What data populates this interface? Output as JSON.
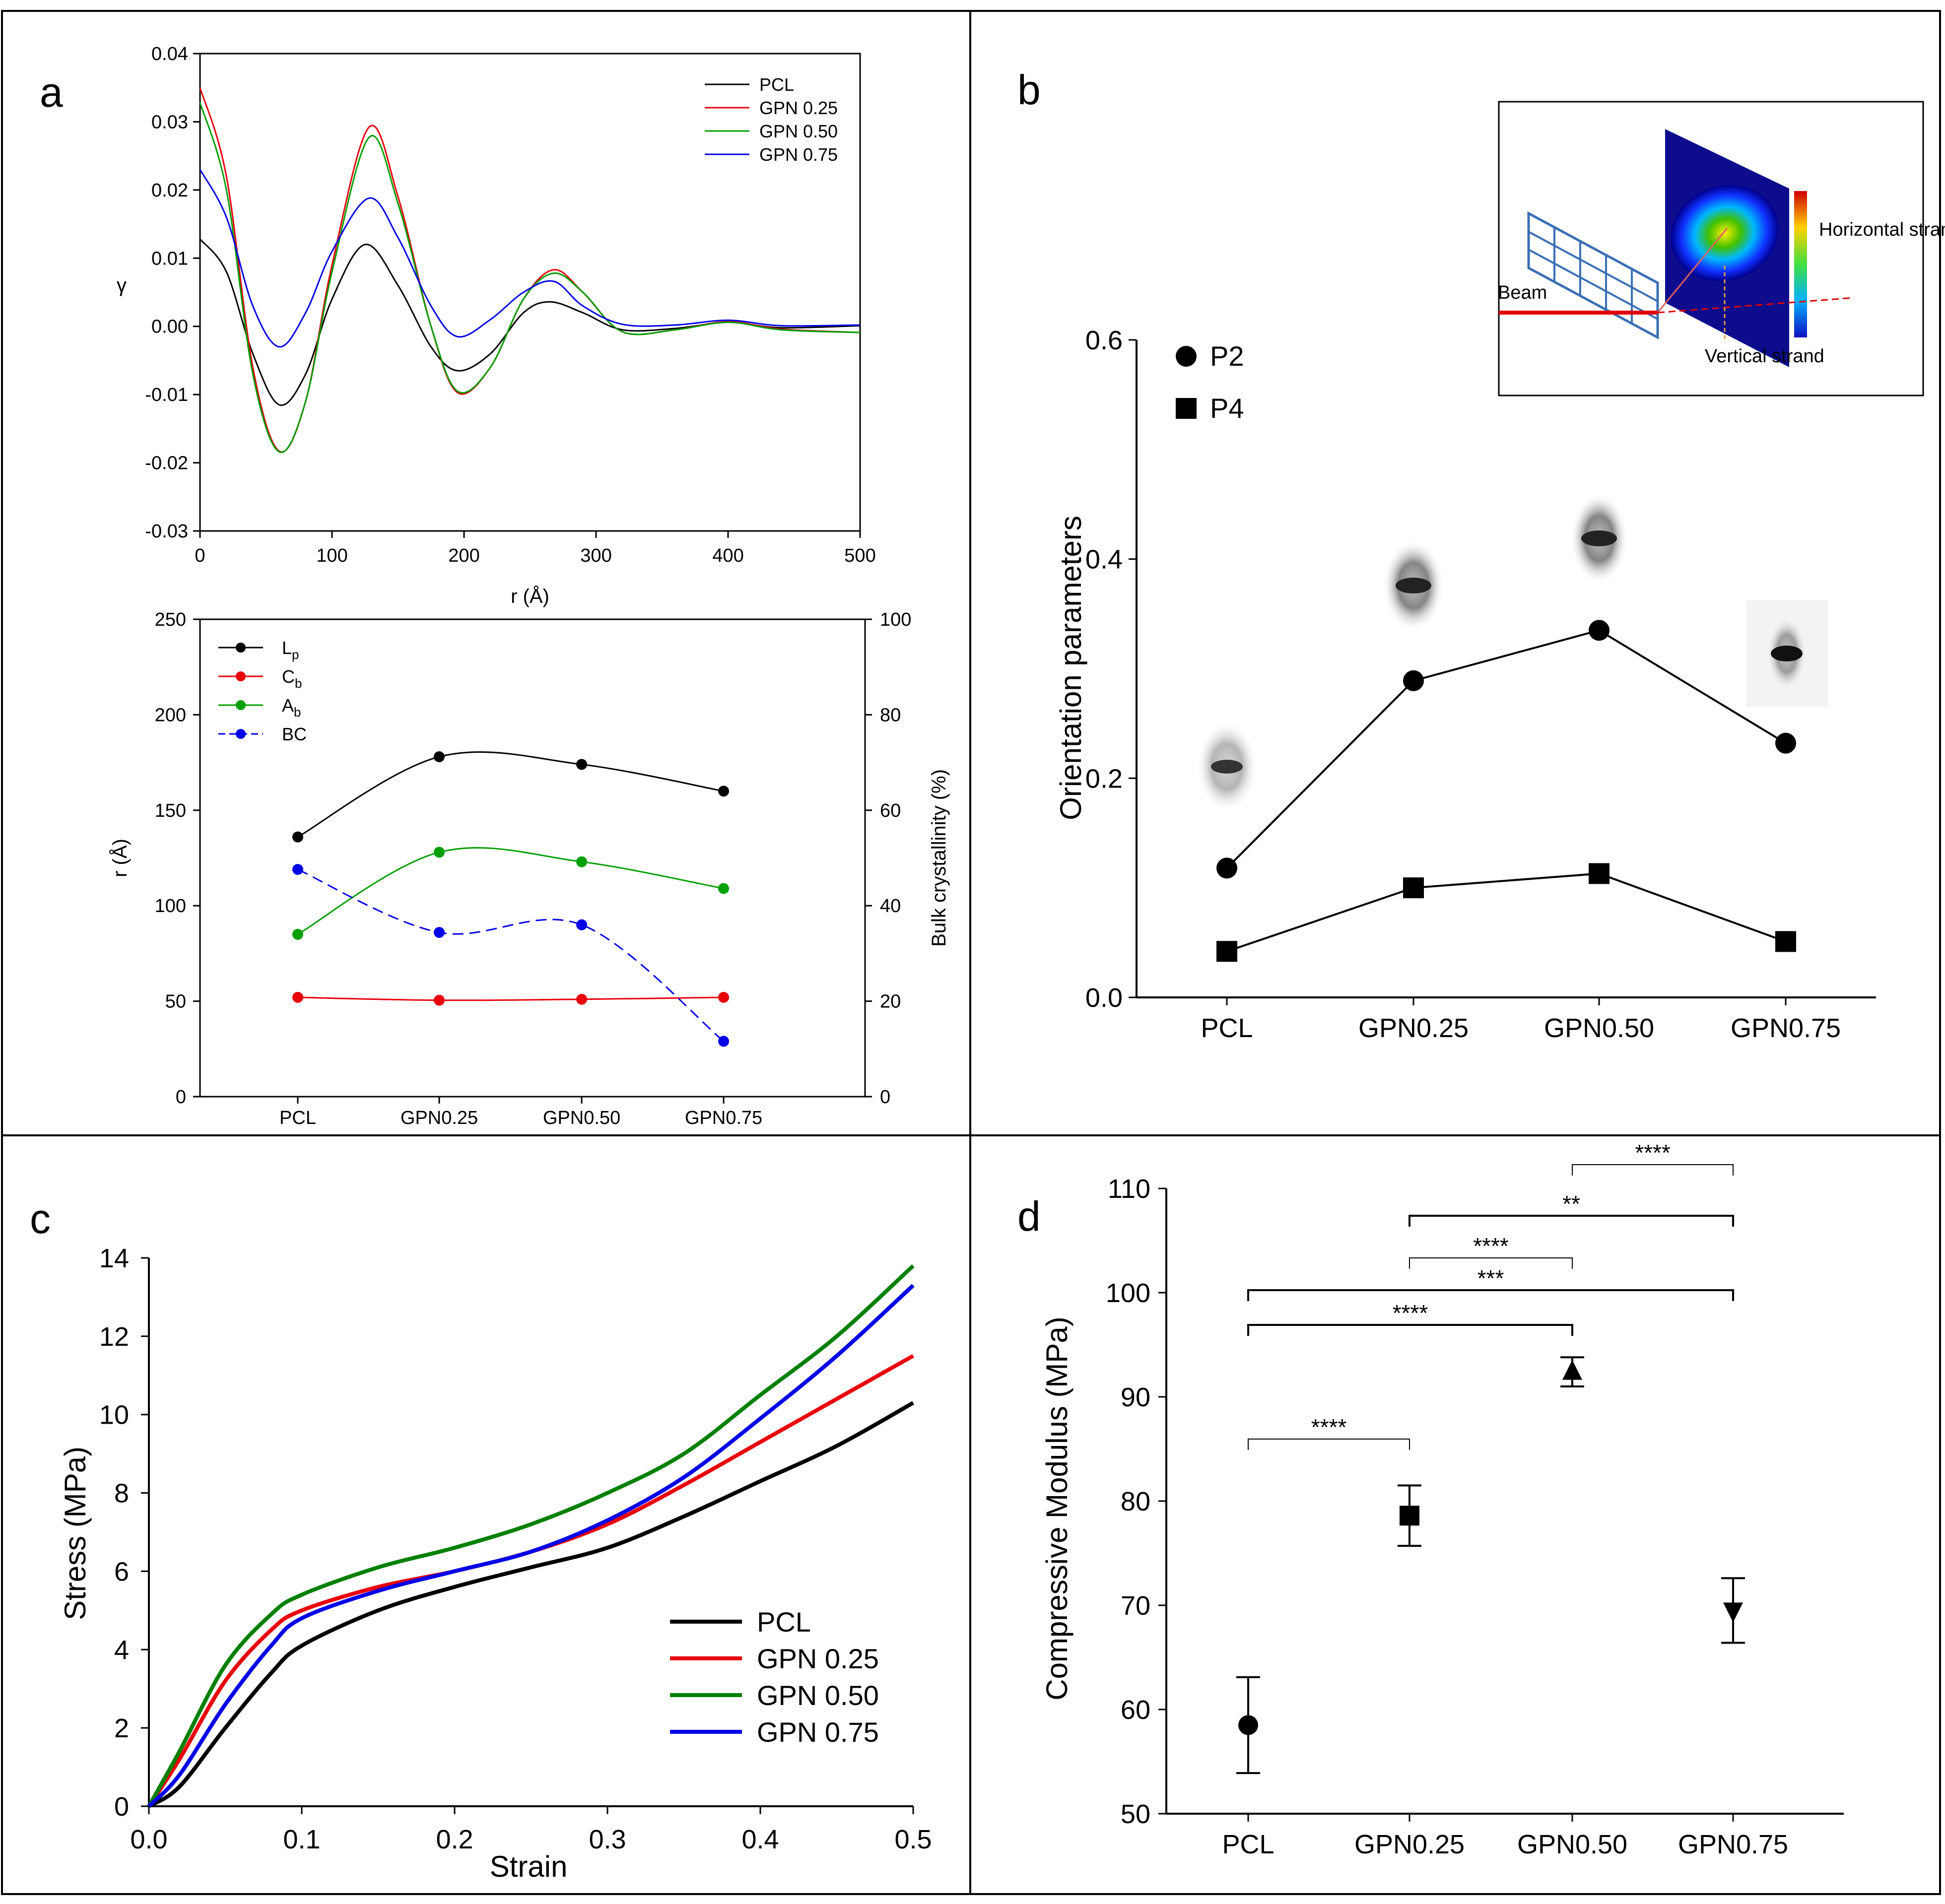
{
  "panels": {
    "a": "a",
    "b": "b",
    "c": "c",
    "d": "d"
  },
  "chart_data": [
    {
      "id": "a-top",
      "type": "line",
      "title": "",
      "xlabel": "r (Å)",
      "ylabel": "γ",
      "xlim": [
        0,
        500
      ],
      "ylim": [
        -0.03,
        0.04
      ],
      "xticks": [
        0,
        100,
        200,
        300,
        400,
        500
      ],
      "yticks": [
        -0.03,
        -0.02,
        -0.01,
        0.0,
        0.01,
        0.02,
        0.03,
        0.04
      ],
      "ytick_labels": [
        "-0.03",
        "-0.02",
        "-0.01",
        "0.00",
        "0.01",
        "0.02",
        "0.03",
        "0.04"
      ],
      "legend_position": "top-right",
      "series": [
        {
          "name": "PCL",
          "color": "#000000",
          "x": [
            0,
            20,
            40,
            60,
            80,
            100,
            125,
            150,
            175,
            195,
            220,
            245,
            265,
            290,
            320,
            360,
            400,
            440,
            500
          ],
          "values": [
            0.0128,
            0.008,
            -0.004,
            -0.0115,
            -0.007,
            0.004,
            0.012,
            0.006,
            -0.003,
            -0.0065,
            -0.004,
            0.002,
            0.0036,
            0.002,
            -0.0005,
            -0.0003,
            0.0006,
            -0.0002,
            0.0001
          ]
        },
        {
          "name": "GPN 0.25",
          "color": "#e8000b",
          "x": [
            0,
            20,
            40,
            60,
            80,
            100,
            128,
            150,
            175,
            195,
            220,
            245,
            268,
            290,
            320,
            360,
            400,
            440,
            500
          ],
          "values": [
            0.035,
            0.022,
            -0.006,
            -0.0183,
            -0.011,
            0.009,
            0.0292,
            0.019,
            0.0,
            -0.0097,
            -0.006,
            0.004,
            0.0083,
            0.005,
            -0.0008,
            -0.0005,
            0.0007,
            -0.0004,
            -0.0009
          ]
        },
        {
          "name": "GPN 0.50",
          "color": "#00a000",
          "x": [
            0,
            20,
            40,
            60,
            80,
            100,
            128,
            150,
            175,
            195,
            220,
            245,
            268,
            290,
            320,
            360,
            400,
            440,
            500
          ],
          "values": [
            0.0328,
            0.02,
            -0.007,
            -0.0184,
            -0.011,
            0.008,
            0.0277,
            0.018,
            0.0,
            -0.0095,
            -0.006,
            0.004,
            0.0078,
            0.005,
            -0.0008,
            -0.0005,
            0.0006,
            -0.0005,
            -0.0009
          ]
        },
        {
          "name": "GPN 0.75",
          "color": "#0000e6",
          "x": [
            0,
            20,
            40,
            60,
            80,
            100,
            128,
            150,
            175,
            195,
            220,
            245,
            268,
            290,
            320,
            360,
            400,
            440,
            500
          ],
          "values": [
            0.023,
            0.016,
            0.003,
            -0.003,
            0.002,
            0.011,
            0.0188,
            0.013,
            0.003,
            -0.0015,
            0.001,
            0.005,
            0.0066,
            0.003,
            0.0003,
            0.0002,
            0.0009,
            0.0001,
            0.0002
          ]
        }
      ]
    },
    {
      "id": "a-bottom",
      "type": "line",
      "categories": [
        "PCL",
        "GPN0.25",
        "GPN0.50",
        "GPN0.75"
      ],
      "xlabel": "",
      "ylabel": "r (Å)",
      "ylabel_right": "Bulk crystallinity (%)",
      "ylim": [
        0,
        250
      ],
      "ylim_right": [
        0,
        100
      ],
      "yticks": [
        0,
        50,
        100,
        150,
        200,
        250
      ],
      "yticks_right": [
        0,
        20,
        40,
        60,
        80,
        100
      ],
      "legend_position": "top-left",
      "series": [
        {
          "name": "Lp",
          "label_main": "L",
          "label_sub": "p",
          "color": "#000000",
          "axis": "left",
          "dashed": false,
          "values": [
            136,
            178,
            174,
            160
          ]
        },
        {
          "name": "Cb",
          "label_main": "C",
          "label_sub": "b",
          "color": "#e8000b",
          "axis": "left",
          "dashed": false,
          "values": [
            52,
            50.5,
            51,
            52
          ]
        },
        {
          "name": "Ab",
          "label_main": "A",
          "label_sub": "b",
          "color": "#00a000",
          "axis": "left",
          "dashed": false,
          "values": [
            85,
            128,
            123,
            109
          ]
        },
        {
          "name": "BC",
          "label_main": "BC",
          "label_sub": "",
          "color": "#0000e6",
          "axis": "right",
          "dashed": true,
          "values": [
            47.6,
            34.4,
            36,
            11.6
          ]
        }
      ]
    },
    {
      "id": "b",
      "type": "line",
      "categories": [
        "PCL",
        "GPN0.25",
        "GPN0.50",
        "GPN0.75"
      ],
      "xlabel": "",
      "ylabel": "Orientation parameters",
      "ylim": [
        0,
        0.6
      ],
      "yticks": [
        0.0,
        0.2,
        0.4,
        0.6
      ],
      "ytick_labels": [
        "0.0",
        "0.2",
        "0.4",
        "0.6"
      ],
      "legend_position": "top-left",
      "series": [
        {
          "name": "P2",
          "marker": "circle",
          "values": [
            0.118,
            0.289,
            0.335,
            0.232
          ]
        },
        {
          "name": "P4",
          "marker": "square",
          "values": [
            0.042,
            0.1,
            0.113,
            0.051
          ]
        }
      ],
      "inset_labels": {
        "beam": "Beam",
        "horizontal": "Horizontal strand",
        "vertical": "Vertical strand"
      }
    },
    {
      "id": "c",
      "type": "line",
      "xlabel": "Strain",
      "ylabel": "Stress (MPa)",
      "xlim": [
        0,
        0.5
      ],
      "ylim": [
        0,
        14
      ],
      "xticks": [
        0.0,
        0.1,
        0.2,
        0.3,
        0.4,
        0.5
      ],
      "xtick_labels": [
        "0.0",
        "0.1",
        "0.2",
        "0.3",
        "0.4",
        "0.5"
      ],
      "yticks": [
        0,
        2,
        4,
        6,
        8,
        10,
        12,
        14
      ],
      "legend_position": "bottom-right",
      "series": [
        {
          "name": "PCL",
          "color": "#000000",
          "x": [
            0,
            0.02,
            0.05,
            0.08,
            0.1,
            0.15,
            0.2,
            0.25,
            0.3,
            0.35,
            0.4,
            0.45,
            0.5
          ],
          "values": [
            0,
            0.5,
            2.0,
            3.4,
            4.1,
            5.0,
            5.6,
            6.1,
            6.6,
            7.4,
            8.3,
            9.2,
            10.3
          ]
        },
        {
          "name": "GPN 0.25",
          "color": "#e8000b",
          "x": [
            0,
            0.02,
            0.05,
            0.08,
            0.1,
            0.15,
            0.2,
            0.25,
            0.3,
            0.35,
            0.4,
            0.45,
            0.5
          ],
          "values": [
            0,
            1.2,
            3.2,
            4.5,
            5.0,
            5.6,
            6.0,
            6.5,
            7.2,
            8.2,
            9.3,
            10.4,
            11.5
          ]
        },
        {
          "name": "GPN 0.50",
          "color": "#008000",
          "x": [
            0,
            0.02,
            0.05,
            0.08,
            0.1,
            0.15,
            0.2,
            0.25,
            0.3,
            0.35,
            0.4,
            0.45,
            0.5
          ],
          "values": [
            0,
            1.4,
            3.6,
            4.9,
            5.4,
            6.1,
            6.6,
            7.2,
            8.0,
            9.0,
            10.5,
            12.0,
            13.8
          ]
        },
        {
          "name": "GPN 0.75",
          "color": "#0000e6",
          "x": [
            0,
            0.02,
            0.05,
            0.08,
            0.1,
            0.15,
            0.2,
            0.25,
            0.3,
            0.35,
            0.4,
            0.45,
            0.5
          ],
          "values": [
            0,
            0.8,
            2.6,
            4.1,
            4.8,
            5.5,
            6.0,
            6.5,
            7.3,
            8.4,
            9.9,
            11.5,
            13.3
          ]
        }
      ]
    },
    {
      "id": "d",
      "type": "scatter",
      "categories": [
        "PCL",
        "GPN0.25",
        "GPN0.50",
        "GPN0.75"
      ],
      "xlabel": "",
      "ylabel": "Compressive Modulus (MPa)",
      "ylim": [
        50,
        110
      ],
      "yticks": [
        50,
        60,
        70,
        80,
        90,
        100,
        110
      ],
      "series": [
        {
          "name": "Compressive Modulus",
          "markers": [
            "circle",
            "square",
            "triangle-up",
            "triangle-down"
          ],
          "values": [
            58.5,
            78.6,
            92.4,
            69.5
          ],
          "errors": [
            4.6,
            2.9,
            1.4,
            3.1
          ]
        }
      ],
      "significance": [
        {
          "from": 0,
          "to": 1,
          "label": "****"
        },
        {
          "from": 0,
          "to": 2,
          "label": "****"
        },
        {
          "from": 0,
          "to": 3,
          "label": "***"
        },
        {
          "from": 1,
          "to": 2,
          "label": "****"
        },
        {
          "from": 1,
          "to": 3,
          "label": "**"
        },
        {
          "from": 2,
          "to": 3,
          "label": "****"
        }
      ]
    }
  ]
}
